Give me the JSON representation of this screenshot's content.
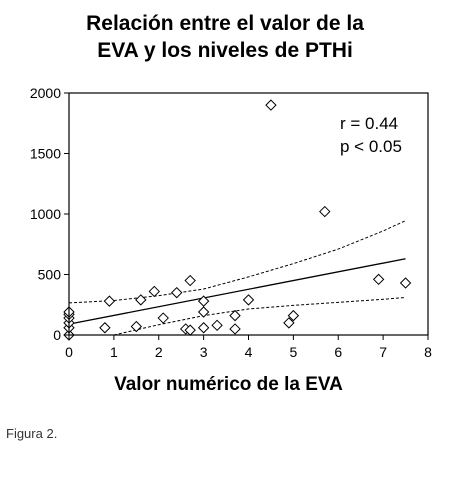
{
  "chart_data": {
    "type": "scatter",
    "title_lines": [
      "Relación entre el valor de la",
      "EVA y los niveles de PTHi"
    ],
    "xlabel": "Valor numérico de la EVA",
    "ylabel": "",
    "xlim": [
      0,
      8
    ],
    "ylim": [
      0,
      2000
    ],
    "xticks": [
      0,
      1,
      2,
      3,
      4,
      5,
      6,
      7,
      8
    ],
    "yticks": [
      0,
      500,
      1000,
      1500,
      2000
    ],
    "grid": false,
    "legend": "none",
    "marker": "open-diamond",
    "annotations": [
      "r = 0.44",
      "p < 0.05"
    ],
    "points": [
      {
        "x": 0,
        "y": 0
      },
      {
        "x": 0,
        "y": 60
      },
      {
        "x": 0,
        "y": 100
      },
      {
        "x": 0,
        "y": 140
      },
      {
        "x": 0,
        "y": 170
      },
      {
        "x": 0,
        "y": 190
      },
      {
        "x": 0.8,
        "y": 60
      },
      {
        "x": 0.9,
        "y": 280
      },
      {
        "x": 1.5,
        "y": 70
      },
      {
        "x": 1.6,
        "y": 290
      },
      {
        "x": 1.9,
        "y": 360
      },
      {
        "x": 2.1,
        "y": 140
      },
      {
        "x": 2.4,
        "y": 350
      },
      {
        "x": 2.6,
        "y": 50
      },
      {
        "x": 2.7,
        "y": 40
      },
      {
        "x": 2.7,
        "y": 450
      },
      {
        "x": 3.0,
        "y": 60
      },
      {
        "x": 3.0,
        "y": 190
      },
      {
        "x": 3.0,
        "y": 280
      },
      {
        "x": 3.3,
        "y": 80
      },
      {
        "x": 3.7,
        "y": 50
      },
      {
        "x": 3.7,
        "y": 160
      },
      {
        "x": 4.0,
        "y": 290
      },
      {
        "x": 4.5,
        "y": 1900
      },
      {
        "x": 4.9,
        "y": 100
      },
      {
        "x": 5.0,
        "y": 160
      },
      {
        "x": 5.7,
        "y": 1020
      },
      {
        "x": 6.9,
        "y": 460
      },
      {
        "x": 7.5,
        "y": 430
      }
    ],
    "regression": {
      "x": [
        0,
        7.5
      ],
      "y": [
        90,
        630
      ]
    },
    "ci_upper": {
      "x": [
        0,
        1,
        2,
        3,
        4,
        5,
        6,
        7,
        7.5
      ],
      "y": [
        265,
        285,
        325,
        380,
        480,
        590,
        710,
        860,
        945
      ]
    },
    "ci_lower": {
      "x": [
        1.0,
        2,
        3,
        4,
        5,
        6,
        7,
        7.5
      ],
      "y": [
        0,
        85,
        160,
        215,
        245,
        270,
        295,
        310
      ]
    }
  },
  "caption": "Figura 2."
}
